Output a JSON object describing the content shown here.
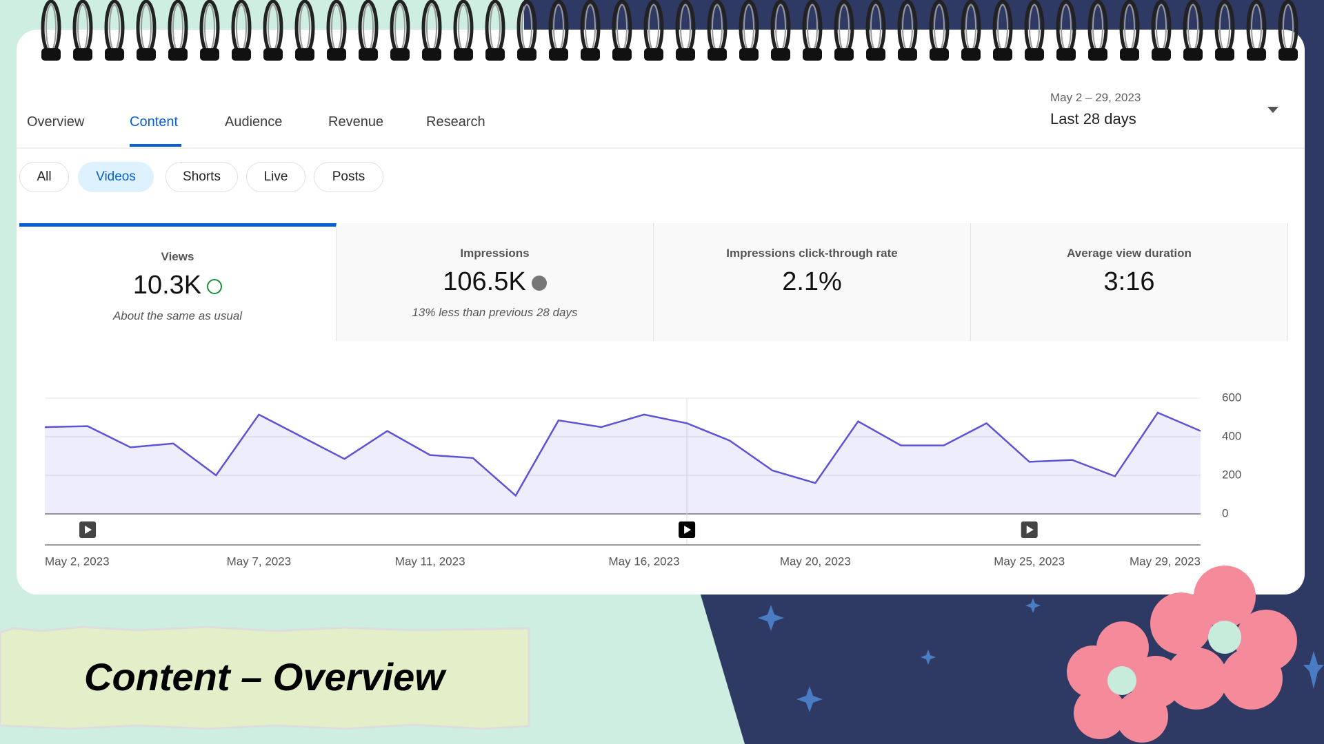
{
  "tabs": [
    "Overview",
    "Content",
    "Audience",
    "Revenue",
    "Research"
  ],
  "date_range": {
    "dates": "May 2 – 29, 2023",
    "label": "Last 28 days"
  },
  "filters": [
    "All",
    "Videos",
    "Shorts",
    "Live",
    "Posts"
  ],
  "metrics": [
    {
      "label": "Views",
      "value": "10.3K",
      "note": "About the same as usual"
    },
    {
      "label": "Impressions",
      "value": "106.5K",
      "note": "13% less than previous 28 days"
    },
    {
      "label": "Impressions click-through rate",
      "value": "2.1%"
    },
    {
      "label": "Average view duration",
      "value": "3:16"
    }
  ],
  "chart_data": {
    "type": "line",
    "categories": [
      "May 2, 2023",
      null,
      null,
      null,
      null,
      "May 7, 2023",
      null,
      null,
      null,
      "May 11, 2023",
      null,
      null,
      null,
      null,
      "May 16, 2023",
      null,
      null,
      null,
      "May 20, 2023",
      null,
      null,
      null,
      null,
      "May 25, 2023",
      null,
      null,
      null,
      "May 29, 2023"
    ],
    "values": [
      450,
      455,
      345,
      365,
      200,
      515,
      400,
      285,
      430,
      305,
      290,
      95,
      485,
      450,
      515,
      470,
      380,
      225,
      160,
      480,
      355,
      355,
      470,
      270,
      280,
      195,
      525,
      430
    ],
    "color": "#5c52d6",
    "ylim": [
      0,
      600
    ],
    "yticks": [
      0,
      200,
      400,
      600
    ],
    "grid": true
  },
  "caption": "Content – Overview"
}
